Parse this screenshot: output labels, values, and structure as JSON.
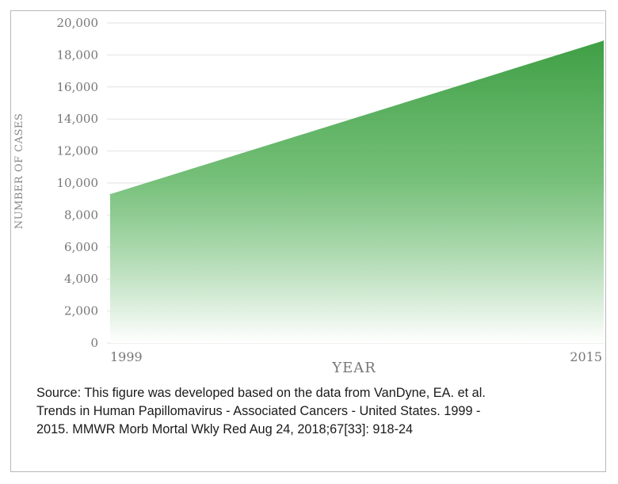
{
  "chart_data": {
    "type": "area",
    "x": [
      "1999",
      "2015"
    ],
    "values": [
      9300,
      18900
    ],
    "xlabel": "YEAR",
    "ylabel": "NUMBER OF CASES",
    "ylim": [
      0,
      20000
    ],
    "yticks": [
      "0",
      "2,000",
      "4,000",
      "6,000",
      "8,000",
      "10,000",
      "12,000",
      "14,000",
      "16,000",
      "18,000",
      "20,000"
    ],
    "xticks": [
      "1999",
      "2015"
    ],
    "grid": true,
    "fill_color": "#4aa84f"
  },
  "source_lines": [
    "Source: This figure was developed based on the data from VanDyne, EA. et al.",
    "Trends in Human Papillomavirus - Associated Cancers - United States. 1999 -",
    "2015. MMWR Morb Mortal Wkly Red Aug 24, 2018;67[33]: 918-24"
  ]
}
